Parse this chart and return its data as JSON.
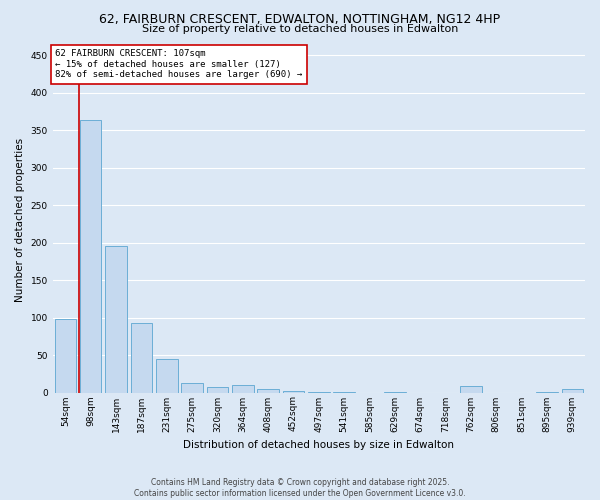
{
  "title_line1": "62, FAIRBURN CRESCENT, EDWALTON, NOTTINGHAM, NG12 4HP",
  "title_line2": "Size of property relative to detached houses in Edwalton",
  "xlabel": "Distribution of detached houses by size in Edwalton",
  "ylabel": "Number of detached properties",
  "categories": [
    "54sqm",
    "98sqm",
    "143sqm",
    "187sqm",
    "231sqm",
    "275sqm",
    "320sqm",
    "364sqm",
    "408sqm",
    "452sqm",
    "497sqm",
    "541sqm",
    "585sqm",
    "629sqm",
    "674sqm",
    "718sqm",
    "762sqm",
    "806sqm",
    "851sqm",
    "895sqm",
    "939sqm"
  ],
  "values": [
    98,
    363,
    196,
    93,
    45,
    13,
    7,
    10,
    5,
    2,
    1,
    1,
    0,
    1,
    0,
    0,
    9,
    0,
    0,
    1,
    5
  ],
  "bar_color": "#c5d9ef",
  "bar_edge_color": "#6baed6",
  "background_color": "#dce8f5",
  "plot_bg_color": "#dce8f5",
  "grid_color": "#ffffff",
  "annotation_text": "62 FAIRBURN CRESCENT: 107sqm\n← 15% of detached houses are smaller (127)\n82% of semi-detached houses are larger (690) →",
  "annotation_box_color": "#ffffff",
  "annotation_box_edge_color": "#cc0000",
  "annotation_text_color": "#000000",
  "vline_x": 0.55,
  "vline_color": "#cc0000",
  "ylim": [
    0,
    460
  ],
  "yticks": [
    0,
    50,
    100,
    150,
    200,
    250,
    300,
    350,
    400,
    450
  ],
  "footer_text": "Contains HM Land Registry data © Crown copyright and database right 2025.\nContains public sector information licensed under the Open Government Licence v3.0.",
  "title_fontsize": 9,
  "subtitle_fontsize": 8,
  "axis_label_fontsize": 7.5,
  "tick_fontsize": 6.5,
  "annotation_fontsize": 6.5,
  "footer_fontsize": 5.5
}
